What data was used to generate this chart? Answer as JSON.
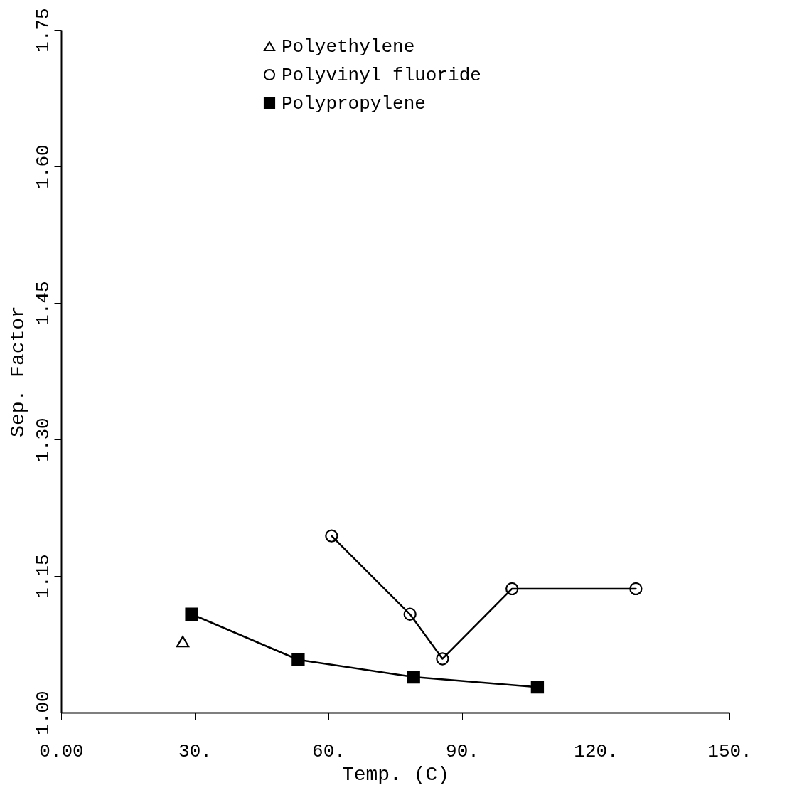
{
  "chart_data": {
    "type": "line",
    "xlabel": "Temp.  (C)",
    "ylabel": "Sep. Factor",
    "xlim": [
      0,
      150
    ],
    "xticks": [
      {
        "value": 0,
        "label": "0.00"
      },
      {
        "value": 30,
        "label": "30."
      },
      {
        "value": 60,
        "label": "60."
      },
      {
        "value": 90,
        "label": "90."
      },
      {
        "value": 120,
        "label": "120."
      },
      {
        "value": 150,
        "label": "150."
      }
    ],
    "ylim": [
      1.0,
      1.75
    ],
    "yticks": [
      {
        "value": 1.0,
        "label": "1.00"
      },
      {
        "value": 1.15,
        "label": "1.15"
      },
      {
        "value": 1.3,
        "label": "1.30"
      },
      {
        "value": 1.45,
        "label": "1.45"
      },
      {
        "value": 1.6,
        "label": "1.60"
      },
      {
        "value": 1.75,
        "label": "1.75"
      }
    ],
    "grid": false,
    "legend": "top",
    "series": [
      {
        "name": "Polyethylene",
        "type": "scatter",
        "marker": "triangle",
        "color": "#000000",
        "x": [
          27.3
        ],
        "values": [
          1.078
        ]
      },
      {
        "name": "Polyvinyl fluoride",
        "type": "line",
        "marker": "circle",
        "color": "#000000",
        "x": [
          60.7,
          78.3,
          85.6,
          101.2,
          129
        ],
        "values": [
          1.194,
          1.108,
          1.059,
          1.136,
          1.136
        ]
      },
      {
        "name": "Polypropylene",
        "type": "line",
        "marker": "square",
        "color": "#000000",
        "x": [
          29.3,
          53.2,
          79.1,
          106.9
        ],
        "values": [
          1.108,
          1.058,
          1.039,
          1.028
        ]
      }
    ]
  }
}
